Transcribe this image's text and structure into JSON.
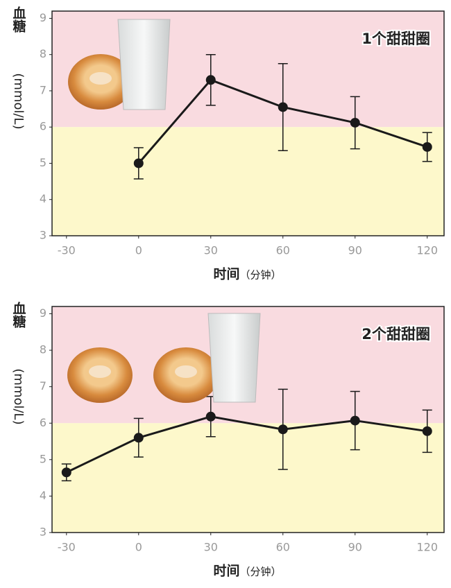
{
  "chart_data": [
    {
      "type": "line",
      "ylabel": "血糖",
      "ylabel_unit": "(mmol/L)",
      "xlabel": "时间",
      "xlabel_unit": "（分钟）",
      "annotation": "1个甜甜圈",
      "x": [
        0,
        30,
        60,
        90,
        120
      ],
      "series": [
        {
          "color": "#1a1a1a",
          "values": [
            5.0,
            7.3,
            6.55,
            6.12,
            5.45
          ],
          "errors": [
            0.43,
            0.7,
            1.2,
            0.72,
            0.4
          ]
        }
      ],
      "xlim": [
        -36,
        127
      ],
      "xticks": [
        -30,
        0,
        30,
        60,
        90,
        120
      ],
      "ylim": [
        3,
        9.2
      ],
      "yticks": [
        3,
        4,
        5,
        6,
        7,
        8,
        9
      ],
      "threshold": 6,
      "band_colors": [
        "#fdf8cb",
        "#f9dbe0"
      ]
    },
    {
      "type": "line",
      "ylabel": "血糖",
      "ylabel_unit": "(mmol/L)",
      "xlabel": "时间",
      "xlabel_unit": "（分钟）",
      "annotation": "2个甜甜圈",
      "x": [
        -30,
        0,
        30,
        60,
        90,
        120
      ],
      "series": [
        {
          "color": "#1a1a1a",
          "values": [
            4.65,
            5.6,
            6.18,
            5.83,
            6.07,
            5.78
          ],
          "errors": [
            0.23,
            0.53,
            0.55,
            1.1,
            0.8,
            0.58
          ]
        }
      ],
      "xlim": [
        -36,
        127
      ],
      "xticks": [
        -30,
        0,
        30,
        60,
        90,
        120
      ],
      "ylim": [
        3,
        9.2
      ],
      "yticks": [
        3,
        4,
        5,
        6,
        7,
        8,
        9
      ],
      "threshold": 6,
      "band_colors": [
        "#fdf8cb",
        "#f9dbe0"
      ]
    }
  ]
}
